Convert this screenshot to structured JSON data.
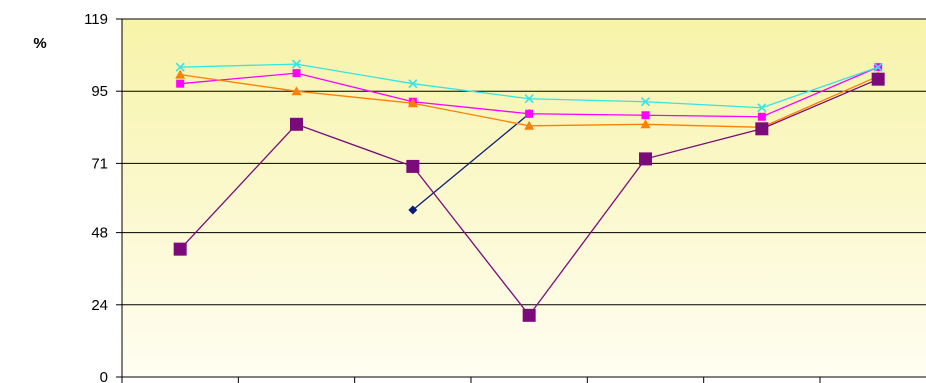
{
  "chart_data": {
    "type": "line",
    "unit_label": "%",
    "y_ticks": [
      "0",
      "24",
      "48",
      "71",
      "95",
      "119"
    ],
    "ylim": [
      0,
      119
    ],
    "grid": true,
    "legend": "none",
    "background": {
      "top": "#f7f3a8",
      "bottom": "#fffef2"
    },
    "x": [
      1,
      2,
      3,
      4,
      5,
      6,
      7
    ],
    "series": [
      {
        "color": "#0a1a78",
        "marker": "diamond",
        "values": [
          null,
          null,
          55.5,
          87.5,
          null,
          null,
          null
        ]
      },
      {
        "color": "#ff00ff",
        "marker": "square",
        "values": [
          97.5,
          101,
          91.5,
          87.5,
          87,
          86.5,
          103
        ]
      },
      {
        "color": "#ff7f00",
        "marker": "triangle",
        "values": [
          100.5,
          95,
          91,
          83.5,
          84,
          83,
          100
        ]
      },
      {
        "color": "#33e5e5",
        "marker": "x",
        "values": [
          103,
          104,
          97.5,
          92.5,
          91.5,
          89.5,
          103
        ]
      },
      {
        "color": "#7b0a7b",
        "marker": "big-square",
        "values": [
          42.5,
          84,
          70,
          20.5,
          72.5,
          82.5,
          99
        ]
      }
    ]
  }
}
